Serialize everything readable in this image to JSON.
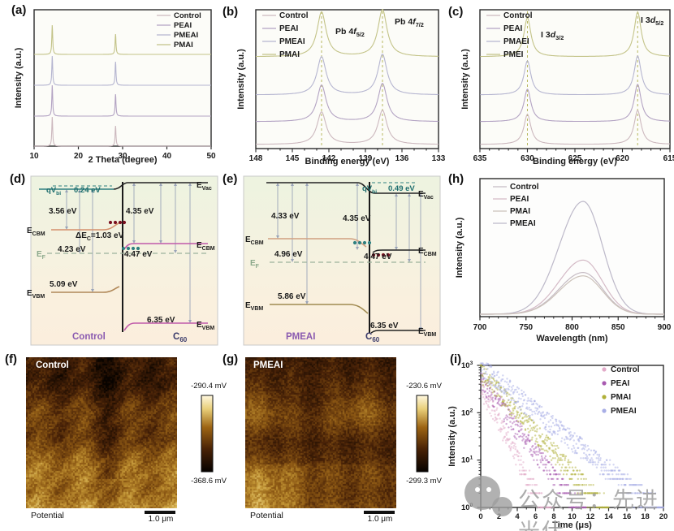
{
  "figure": {
    "panel_letters": {
      "a": "(a)",
      "b": "(b)",
      "c": "(c)",
      "d": "(d)",
      "e": "(e)",
      "f": "(f)",
      "g": "(g)",
      "h": "(h)",
      "i": "(i)"
    }
  },
  "watermark": {
    "logo": "wechat-logo",
    "text": "公众号：先进光伏"
  },
  "chart_data": [
    {
      "panel": "a",
      "type": "line",
      "kind": "xrd-stacked",
      "xlabel": "2 Theta (degree)",
      "ylabel": "Intensity (a.u.)",
      "xlim": [
        10,
        50
      ],
      "x_ticks": [
        10,
        20,
        30,
        40,
        50
      ],
      "legend": [
        "Control",
        "PEAI",
        "PMEAI",
        "PMAI"
      ],
      "stack_top_to_bottom": [
        "PMAI",
        "PMEAI",
        "PEAI",
        "Control"
      ],
      "peak_positions_deg": [
        14.1,
        28.4
      ],
      "series_colors": {
        "Control": "#ccb8be",
        "PEAI": "#b3a3c3",
        "PMEAI": "#b5b5d0",
        "PMAI": "#c3c388"
      },
      "peak_h1": [
        36,
        36,
        38,
        36
      ],
      "peak_h2": [
        25,
        29,
        27,
        25
      ],
      "baselines": [
        67,
        105,
        143,
        180
      ]
    },
    {
      "panel": "b",
      "type": "line",
      "kind": "xps-stacked",
      "xlabel": "Binding energy (eV)",
      "ylabel": "Intensity (a.u.)",
      "xlim": [
        148,
        133
      ],
      "x_ticks": [
        148,
        145,
        142,
        139,
        136,
        133
      ],
      "legend": [
        "Control",
        "PEAI",
        "PMEAI",
        "PMAI"
      ],
      "stack_top_to_bottom": [
        "PMAI",
        "PMEAI",
        "PEAI",
        "Control"
      ],
      "peak_labels": [
        {
          "pre": "Pb 4",
          "it": "f",
          "sub": "5/2"
        },
        {
          "pre": "Pb 4",
          "it": "f",
          "sub": "7/2"
        }
      ],
      "peak_positions_ev": [
        142.6,
        137.6
      ],
      "guide_color": "#b8b860",
      "series_colors": {
        "Control": "#ccb8be",
        "PEAI": "#b3a3c3",
        "PMEAI": "#b5b5d0",
        "PMAI": "#c3c388"
      },
      "baselines": [
        70,
        117,
        150,
        178
      ],
      "peak_h1": [
        55,
        47,
        45,
        40
      ],
      "peak_h2": [
        58,
        50,
        47,
        42
      ]
    },
    {
      "panel": "c",
      "type": "line",
      "kind": "xps-stacked",
      "xlabel": "Binding energy (eV)",
      "ylabel": "Intensity (a.u.)",
      "xlim": [
        635,
        615
      ],
      "x_ticks": [
        635,
        630,
        625,
        620,
        615
      ],
      "legend": [
        "Control",
        "PEAI",
        "PMAEI",
        "PMEI"
      ],
      "stack_top_to_bottom": [
        "PMEI",
        "PMAEI",
        "PEAI",
        "Control"
      ],
      "peak_labels": [
        {
          "pre": "I 3",
          "it": "d",
          "sub": "3/2"
        },
        {
          "pre": "I 3",
          "it": "d",
          "sub": "5/2"
        }
      ],
      "peak_positions_ev": [
        630.0,
        618.4
      ],
      "guide_color": "#b8b860",
      "series_colors": {
        "Control": "#ccb8be",
        "PEAI": "#b3a3c3",
        "PMAEI": "#b5b5d0",
        "PMEI": "#c3c388"
      },
      "baselines": [
        70,
        117,
        150,
        178
      ],
      "peak_h1": [
        48,
        42,
        40,
        37
      ],
      "peak_h2": [
        55,
        48,
        46,
        42
      ]
    },
    {
      "panel": "d",
      "type": "diagram",
      "kind": "energy-band",
      "left_material": "Control",
      "right_material": {
        "pre": "C",
        "sub": "60"
      },
      "labels": {
        "evac": {
          "pre": "E",
          "sub": "Vac"
        },
        "ecbm": {
          "pre": "E",
          "sub": "CBM"
        },
        "ef": {
          "pre": "E",
          "sub": "F"
        },
        "evbm": {
          "pre": "E",
          "sub": "VBM"
        },
        "qvbi": {
          "pre": "qV",
          "sub": "bi"
        }
      },
      "values": {
        "qvbi": "0.24 eV",
        "ea_left": "3.56 eV",
        "ea_right": "4.35 eV",
        "delta": {
          "pre": "ΔE",
          "sub": "C",
          "post": "=1.03 eV"
        },
        "wf_left": "4.23 eV",
        "wf_right": "4.47 eV",
        "ie_left": "5.09 eV",
        "ie_right": "6.35 eV"
      }
    },
    {
      "panel": "e",
      "type": "diagram",
      "kind": "energy-band",
      "left_material": "PMEAI",
      "right_material": {
        "pre": "C",
        "sub": "60"
      },
      "labels": {
        "evac": {
          "pre": "E",
          "sub": "Vac"
        },
        "ecbm": {
          "pre": "E",
          "sub": "CBM"
        },
        "ef": {
          "pre": "E",
          "sub": "F"
        },
        "evbm": {
          "pre": "E",
          "sub": "VBM"
        },
        "qvbi": {
          "pre": "qV",
          "sub": "bi"
        }
      },
      "values": {
        "qvbi": "0.49 eV",
        "ea_left": "4.33 eV",
        "ea_right": "4.35 eV",
        "wf_left": "4.96 eV",
        "wf_right": "4.47 eV",
        "ie_left": "5.86 eV",
        "ie_right": "6.35 eV"
      }
    },
    {
      "panel": "f",
      "type": "heatmap",
      "kind": "kpfm-map",
      "sample": "Control",
      "colorbar_max": "-290.4 mV",
      "colorbar_min": "-368.6 mV",
      "label": "Potential",
      "scalebar": "1.0 μm"
    },
    {
      "panel": "g",
      "type": "heatmap",
      "kind": "kpfm-map",
      "sample": "PMEAI",
      "colorbar_max": "-230.6 mV",
      "colorbar_min": "-299.3 mV",
      "label": "Potential",
      "scalebar": "1.0 μm"
    },
    {
      "panel": "h",
      "type": "line",
      "kind": "pl-spectra",
      "xlabel": "Wavelength (nm)",
      "ylabel": "Intensity (a.u.)",
      "xlim": [
        700,
        900
      ],
      "x_ticks": [
        700,
        750,
        800,
        850,
        900
      ],
      "legend": [
        "Control",
        "PEAI",
        "PMAI",
        "PMEAI"
      ],
      "peak_nm": 812,
      "relative_heights": {
        "Control": 0.37,
        "PEAI": 0.48,
        "PMAI": 0.34,
        "PMEAI": 1.0
      },
      "series_colors": {
        "Control": "#c6bcc4",
        "PEAI": "#d4bac6",
        "PMAI": "#ccc2ba",
        "PMEAI": "#bdb9c9"
      }
    },
    {
      "panel": "i",
      "type": "scatter",
      "kind": "trpl-decay",
      "xlabel": "Time (μs)",
      "ylabel": "Intensity (a.u.)",
      "xlim": [
        0,
        20
      ],
      "x_ticks": [
        0,
        2,
        4,
        6,
        8,
        10,
        12,
        14,
        16,
        18,
        20
      ],
      "ylog_range": [
        1,
        1000
      ],
      "y_tick_exponents": [
        0,
        1,
        2,
        3
      ],
      "legend": [
        "Control",
        "PEAI",
        "PMAI",
        "PMEAI"
      ],
      "series": [
        {
          "name": "Control",
          "color": "#e2aac8",
          "tau_us": 1.15,
          "amp": 380,
          "tmax": 8
        },
        {
          "name": "PEAI",
          "color": "#a85ab0",
          "tau_us": 1.7,
          "amp": 520,
          "tmax": 11.5
        },
        {
          "name": "PMAI",
          "color": "#b0b038",
          "tau_us": 2.05,
          "amp": 750,
          "tmax": 14
        },
        {
          "name": "PMEAI",
          "color": "#a8aee6",
          "tau_us": 2.8,
          "amp": 980,
          "tmax": 20
        }
      ]
    }
  ]
}
